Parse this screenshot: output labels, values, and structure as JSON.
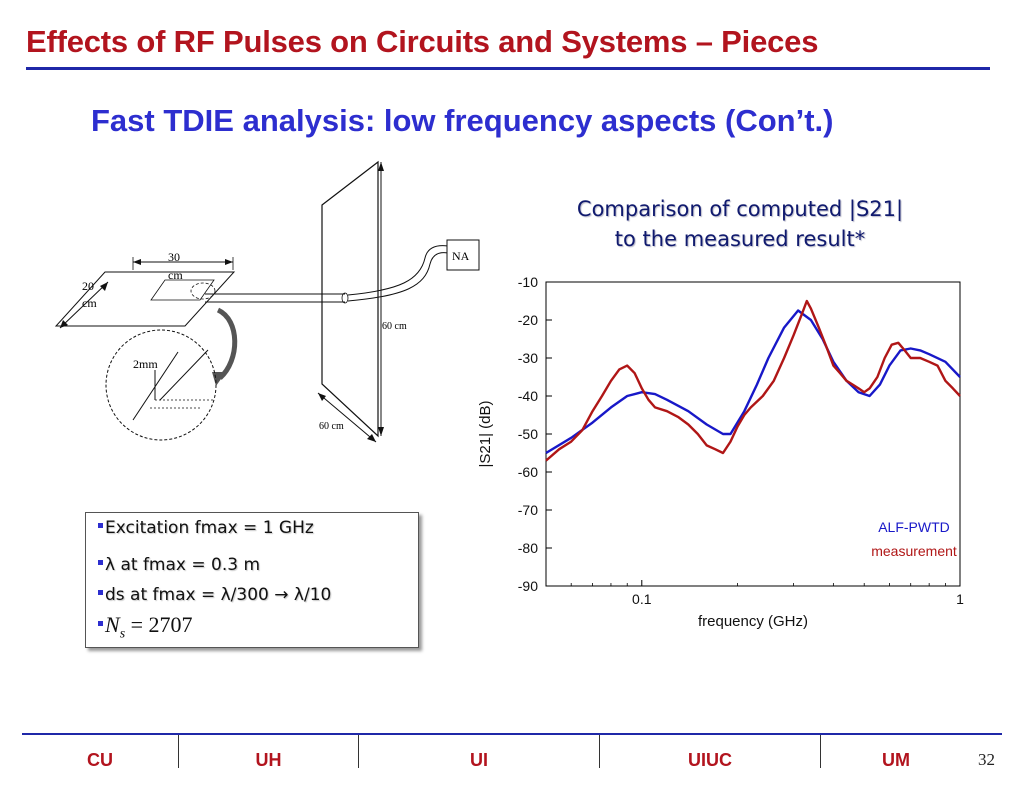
{
  "slide": {
    "title": "Effects of RF Pulses on Circuits and Systems – Pieces",
    "subtitle": "Fast TDIE analysis: low frequency aspects (Con’t.)",
    "page_number": "32"
  },
  "sketch": {
    "dim_30cm_value": "30",
    "dim_30cm_unit": "cm",
    "dim_20cm_value": "20",
    "dim_20cm_unit": "cm",
    "dim_2mm": "2mm",
    "dim_60cm_vertical": "60 cm",
    "dim_60cm_bottom": "60 cm",
    "na_label": "NA"
  },
  "chart_title": {
    "line1": "Comparison of computed |S21|",
    "line2": "to the measured result*"
  },
  "bullets": {
    "item1": "Excitation fmax = 1 GHz",
    "item2": "λ at fmax = 0.3 m",
    "item3": "ds at fmax = λ/300 → λ/10",
    "item4_symbol": "N",
    "item4_sub": "s",
    "item4_rest": " = 2707"
  },
  "footer": {
    "items": [
      "CU",
      "UH",
      "UI",
      "UIUC",
      "UM"
    ]
  },
  "colors": {
    "title_red": "#b2141e",
    "subtitle_blue": "#2d2ecf",
    "rule_blue": "#1f28a8",
    "alf_blue": "#1818c8",
    "meas_red": "#b01616"
  },
  "chart_data": {
    "type": "line",
    "title": "Comparison of computed |S21| to the measured result*",
    "xlabel": "frequency (GHz)",
    "ylabel": "|S21| (dB)",
    "xscale": "log",
    "xlim": [
      0.05,
      1
    ],
    "ylim": [
      -90,
      -10
    ],
    "xticks": [
      0.1,
      1
    ],
    "xtick_labels": [
      "0.1",
      "1"
    ],
    "yticks": [
      -10,
      -20,
      -30,
      -40,
      -50,
      -60,
      -70,
      -80,
      -90
    ],
    "ytick_labels": [
      "-10",
      "-20",
      "-30",
      "-40",
      "-50",
      "-60",
      "-70",
      "-80",
      "-90"
    ],
    "grid": false,
    "legend_position": "bottom-right",
    "series": [
      {
        "name": "ALF-PWTD",
        "color": "#1818c8",
        "x": [
          0.05,
          0.06,
          0.07,
          0.08,
          0.09,
          0.1,
          0.11,
          0.12,
          0.14,
          0.16,
          0.18,
          0.19,
          0.21,
          0.23,
          0.25,
          0.28,
          0.31,
          0.34,
          0.37,
          0.4,
          0.44,
          0.48,
          0.52,
          0.56,
          0.6,
          0.65,
          0.7,
          0.75,
          0.8,
          0.9,
          1.0
        ],
        "y": [
          -55,
          -51,
          -47,
          -43,
          -40,
          -39,
          -39.5,
          -41,
          -44,
          -47.5,
          -50,
          -50,
          -44,
          -37,
          -30,
          -22,
          -17.5,
          -20,
          -25,
          -31,
          -36,
          -39,
          -40,
          -37,
          -32,
          -28,
          -27.5,
          -28,
          -29,
          -31,
          -35
        ]
      },
      {
        "name": "measurement",
        "color": "#b01616",
        "x": [
          0.05,
          0.055,
          0.06,
          0.065,
          0.07,
          0.075,
          0.08,
          0.085,
          0.09,
          0.095,
          0.1,
          0.105,
          0.11,
          0.12,
          0.13,
          0.14,
          0.15,
          0.16,
          0.17,
          0.18,
          0.19,
          0.2,
          0.21,
          0.22,
          0.24,
          0.26,
          0.28,
          0.3,
          0.32,
          0.33,
          0.34,
          0.36,
          0.38,
          0.4,
          0.42,
          0.44,
          0.46,
          0.48,
          0.5,
          0.52,
          0.55,
          0.58,
          0.61,
          0.64,
          0.67,
          0.7,
          0.75,
          0.8,
          0.85,
          0.9,
          0.95,
          1.0
        ],
        "y": [
          -57,
          -54,
          -52,
          -49,
          -44,
          -40,
          -36,
          -33,
          -32,
          -34,
          -38,
          -41,
          -43,
          -44,
          -45.5,
          -47.5,
          -50,
          -53,
          -54,
          -55,
          -52,
          -48,
          -45,
          -43,
          -40,
          -36,
          -30,
          -24,
          -18,
          -15,
          -17,
          -22,
          -27,
          -32,
          -34,
          -36,
          -37,
          -38,
          -39,
          -38,
          -35,
          -30,
          -26.5,
          -26,
          -28,
          -30,
          -30,
          -31,
          -32,
          -36,
          -38,
          -40
        ]
      }
    ]
  }
}
